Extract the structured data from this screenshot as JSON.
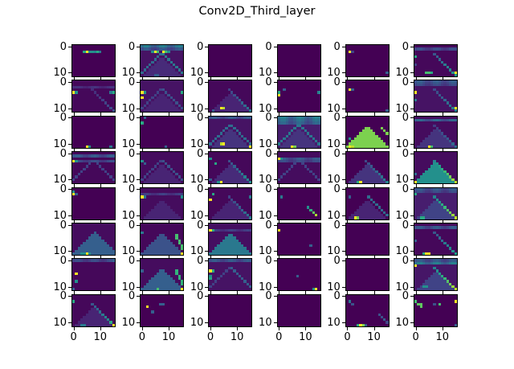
{
  "title": "Conv2D_Third_layer",
  "chart_data": {
    "type": "heatmap",
    "title": "Conv2D_Third_layer",
    "grid": {
      "rows": 8,
      "cols": 6
    },
    "image_shape": [
      12,
      16
    ],
    "colormap": "viridis",
    "yticks": [
      "0",
      "10"
    ],
    "xticks": [
      "0",
      "10"
    ],
    "xlabel": "",
    "ylabel": "",
    "panels": [
      {
        "bg": 0,
        "pts": [
          [
            2,
            4,
            0.6
          ],
          [
            2,
            5,
            1
          ],
          [
            2,
            6,
            0.5
          ],
          [
            2,
            7,
            0.5
          ],
          [
            2,
            8,
            0.45
          ],
          [
            2,
            9,
            0.6
          ],
          [
            2,
            10,
            0.4
          ]
        ]
      },
      {
        "bg": 0.05,
        "band": [
          [
            0,
            0.45
          ],
          [
            1,
            0.3
          ]
        ],
        "tri": 0.12,
        "diag": [
          0.35,
          0.4
        ],
        "pts": [
          [
            2,
            5,
            1
          ],
          [
            2,
            6,
            0.7
          ],
          [
            2,
            8,
            1
          ],
          [
            2,
            9,
            0.7
          ],
          [
            2,
            4,
            0.5
          ],
          [
            2,
            10,
            0.5
          ],
          [
            11,
            5,
            0.3
          ],
          [
            11,
            6,
            0.3
          ]
        ]
      },
      {
        "bg": 0
      },
      {
        "bg": 0
      },
      {
        "bg": 0,
        "pts": [
          [
            2,
            1,
            1
          ],
          [
            2,
            2,
            0.2
          ],
          [
            10,
            15,
            0.3
          ]
        ]
      },
      {
        "bg": 0.02,
        "band": [
          [
            1,
            0.25
          ]
        ],
        "diagR": 0.55,
        "pts": [
          [
            4,
            0,
            0.6
          ],
          [
            7,
            0,
            0.2
          ],
          [
            10,
            4,
            0.7
          ],
          [
            10,
            5,
            0.7
          ],
          [
            10,
            6,
            0.6
          ],
          [
            10,
            15,
            1
          ]
        ]
      },
      {
        "bg": 0.02,
        "diagR": 0.25,
        "band": [
          [
            2,
            0.15
          ]
        ],
        "pts": [
          [
            4,
            0,
            1
          ],
          [
            4,
            1,
            0.5
          ],
          [
            4,
            15,
            0.6
          ],
          [
            4,
            14,
            0.4
          ]
        ]
      },
      {
        "bg": 0.05,
        "tri": 0.1,
        "diag": [
          0.2,
          0.25
        ],
        "pts": [
          [
            4,
            0,
            1
          ],
          [
            4,
            1,
            0.5
          ],
          [
            6,
            0,
            1
          ],
          [
            4,
            15,
            0.6
          ]
        ]
      },
      {
        "bg": 0.02,
        "tri": 0.1,
        "diagR": 0.4,
        "pts": [
          [
            10,
            4,
            1
          ],
          [
            10,
            5,
            0.9
          ],
          [
            11,
            1,
            0.3
          ]
        ]
      },
      {
        "bg": 0,
        "pts": [
          [
            4,
            0,
            0.6
          ],
          [
            5,
            0,
            1
          ],
          [
            4,
            15,
            0.45
          ],
          [
            3,
            2,
            0.3
          ]
        ]
      },
      {
        "bg": 0,
        "pts": [
          [
            3,
            1,
            1
          ],
          [
            3,
            2,
            0.3
          ],
          [
            11,
            15,
            0.3
          ]
        ]
      },
      {
        "bg": 0.05,
        "band": [
          [
            0,
            0.3
          ],
          [
            1,
            0.25
          ]
        ],
        "diagR": 0.45,
        "pts": [
          [
            4,
            0,
            1
          ],
          [
            10,
            15,
            1
          ],
          [
            7,
            0,
            0.4
          ]
        ]
      },
      {
        "bg": 0,
        "pts": [
          [
            11,
            5,
            1
          ],
          [
            11,
            6,
            0.5
          ],
          [
            11,
            14,
            0.4
          ]
        ]
      },
      {
        "bg": 0,
        "pts": [
          [
            0,
            1,
            0.3
          ],
          [
            2,
            0,
            0.6
          ],
          [
            11,
            9,
            0.3
          ]
        ]
      },
      {
        "bg": 0.05,
        "band": [
          [
            0,
            0.3
          ]
        ],
        "tri": 0.15,
        "diag": [
          0.35,
          0.35
        ],
        "pts": [
          [
            10,
            4,
            0.9
          ],
          [
            10,
            5,
            1
          ],
          [
            11,
            15,
            1
          ]
        ]
      },
      {
        "bg": 0.08,
        "band": [
          [
            0,
            0.45
          ],
          [
            1,
            0.4
          ],
          [
            2,
            0.35
          ]
        ],
        "tri": 0.15,
        "diag": [
          0.4,
          0.4
        ],
        "pts": [
          [
            11,
            5,
            1
          ],
          [
            11,
            6,
            0.8
          ]
        ]
      },
      {
        "bg": 0,
        "triBig": 0.8,
        "pts": [
          [
            8,
            1,
            0.5
          ],
          [
            11,
            1,
            1
          ],
          [
            11,
            2,
            0.9
          ],
          [
            4,
            13,
            0.8
          ],
          [
            5,
            14,
            0.8
          ],
          [
            6,
            15,
            0.8
          ]
        ]
      },
      {
        "bg": 0.03,
        "band": [
          [
            1,
            0.35
          ]
        ],
        "tri": 0.15,
        "diagR": 0.35,
        "pts": [
          [
            11,
            5,
            1
          ],
          [
            11,
            6,
            0.7
          ]
        ]
      },
      {
        "bg": 0.02,
        "band": [
          [
            1,
            0.3
          ],
          [
            3,
            0.25
          ]
        ],
        "diag": [
          0.2,
          0.2
        ],
        "pts": [
          [
            3,
            0,
            1
          ],
          [
            3,
            1,
            0.5
          ]
        ]
      },
      {
        "bg": 0.03,
        "tri": 0.1,
        "diag": [
          0.2,
          0.25
        ],
        "pts": [
          [
            3,
            0,
            0.5
          ],
          [
            4,
            1,
            0.3
          ]
        ]
      },
      {
        "bg": 0.02,
        "tri": 0.12,
        "diagR": 0.5,
        "pts": [
          [
            2,
            0,
            0.5
          ],
          [
            4,
            2,
            0.6
          ],
          [
            10,
            0,
            0.3
          ],
          [
            11,
            3,
            0.5
          ],
          [
            11,
            4,
            1
          ]
        ]
      },
      {
        "bg": 0.03,
        "band": [
          [
            2,
            0.3
          ],
          [
            3,
            0.25
          ]
        ],
        "diag": [
          0.2,
          0.2
        ],
        "pts": [
          [
            2,
            0,
            1
          ],
          [
            2,
            1,
            0.5
          ]
        ]
      },
      {
        "bg": 0,
        "tri": 0.15,
        "diagR": 0.45,
        "pts": [
          [
            11,
            5,
            1
          ],
          [
            11,
            4,
            0.6
          ]
        ]
      },
      {
        "bg": 0.03,
        "triBig": 0.5,
        "diagR": 0.9,
        "pts": [
          [
            11,
            0,
            1
          ],
          [
            8,
            0,
            0.35
          ]
        ]
      },
      {
        "bg": 0,
        "pts": [
          [
            1,
            0,
            0.5
          ],
          [
            2,
            0,
            1
          ],
          [
            2,
            1,
            0.3
          ]
        ]
      },
      {
        "bg": 0.03,
        "band": [
          [
            2,
            0.2
          ]
        ],
        "tri": 0.1,
        "pts": [
          [
            3,
            0,
            1
          ],
          [
            3,
            1,
            0.4
          ],
          [
            3,
            15,
            0.5
          ]
        ]
      },
      {
        "bg": 0.02,
        "tri": 0.1,
        "diagR": 0.4,
        "pts": [
          [
            2,
            1,
            0.6
          ],
          [
            4,
            0,
            1
          ],
          [
            3,
            15,
            0.4
          ]
        ]
      },
      {
        "bg": 0,
        "diagRshort": 1,
        "pts": [
          [
            3,
            1,
            0.4
          ]
        ]
      },
      {
        "bg": 0,
        "tri": 0.1,
        "diag": [
          0.0,
          0.35
        ],
        "pts": [
          [
            3,
            1,
            0.3
          ],
          [
            11,
            3,
            1
          ],
          [
            11,
            4,
            0.8
          ]
        ]
      },
      {
        "bg": 0.08,
        "band": [
          [
            0,
            0.3
          ],
          [
            1,
            0.25
          ]
        ],
        "tri": 0.2,
        "diagR": 0.9,
        "pts": [
          [
            2,
            0,
            0.6
          ],
          [
            11,
            2,
            0.6
          ],
          [
            11,
            3,
            0.6
          ]
        ]
      },
      {
        "bg": 0.03,
        "triBig": 0.3,
        "diag": [
          0.0,
          0.3
        ],
        "pts": [
          [
            11,
            4,
            0.5
          ],
          [
            11,
            5,
            1
          ],
          [
            11,
            6,
            0.5
          ],
          [
            11,
            3,
            0.5
          ]
        ]
      },
      {
        "bg": 0.02,
        "triBig": 0.25,
        "diagRgreen": 0.7,
        "pts": [
          [
            3,
            0,
            0.4
          ],
          [
            11,
            15,
            1
          ]
        ]
      },
      {
        "bg": 0.04,
        "triBig": 0.4,
        "band": [
          [
            2,
            0.2
          ]
        ],
        "pts": [
          [
            2,
            0,
            1
          ],
          [
            2,
            1,
            0.6
          ],
          [
            11,
            1,
            0.3
          ]
        ]
      },
      {
        "bg": 0,
        "pts": [
          [
            2,
            0,
            1
          ],
          [
            8,
            12,
            0.3
          ]
        ]
      },
      {
        "bg": 0
      },
      {
        "bg": 0.02,
        "band": [
          [
            1,
            0.3
          ]
        ],
        "diagR": 0.55,
        "pts": [
          [
            11,
            4,
            1
          ],
          [
            11,
            5,
            1
          ],
          [
            11,
            3,
            0.6
          ],
          [
            6,
            0,
            0.3
          ]
        ]
      },
      {
        "bg": 0.02,
        "band": [
          [
            0,
            0.25
          ]
        ],
        "pts": [
          [
            5,
            1,
            1
          ],
          [
            8,
            1,
            0.5
          ],
          [
            11,
            0,
            0.3
          ],
          [
            0,
            15,
            0.3
          ]
        ]
      },
      {
        "bg": 0.03,
        "triBig": 0.3,
        "diagRgreen": 0.65,
        "pts": [
          [
            11,
            6,
            0.7
          ],
          [
            11,
            15,
            1
          ],
          [
            4,
            0,
            0.3
          ]
        ]
      },
      {
        "bg": 0.05,
        "band": [
          [
            0,
            0.3
          ]
        ],
        "diag": [
          0.2,
          0.3
        ],
        "pts": [
          [
            4,
            0,
            1
          ],
          [
            4,
            1,
            0.6
          ],
          [
            6,
            0,
            0.5
          ],
          [
            7,
            0,
            0.6
          ]
        ]
      },
      {
        "bg": 0,
        "pts": [
          [
            6,
            7,
            0.3
          ],
          [
            11,
            13,
            0.5
          ],
          [
            11,
            14,
            1
          ]
        ]
      },
      {
        "bg": 0
      },
      {
        "bg": 0.06,
        "band": [
          [
            1,
            0.45
          ],
          [
            0,
            0.3
          ]
        ],
        "tri": 0.2,
        "diagR": 0.9,
        "pts": [
          [
            2,
            0,
            1
          ],
          [
            10,
            3,
            0.5
          ],
          [
            10,
            4,
            0.5
          ]
        ]
      },
      {
        "bg": 0.02,
        "tri": 0.1,
        "diagR": 0.55,
        "pts": [
          [
            2,
            0,
            0.6
          ],
          [
            11,
            15,
            1
          ],
          [
            10,
            14,
            0.6
          ],
          [
            11,
            3,
            0.4
          ],
          [
            11,
            4,
            0.4
          ]
        ]
      },
      {
        "bg": 0,
        "pts": [
          [
            4,
            2,
            1
          ],
          [
            3,
            7,
            0.3
          ],
          [
            3,
            8,
            0.3
          ],
          [
            6,
            4,
            0.3
          ]
        ]
      },
      {
        "bg": 0
      },
      {
        "bg": 0
      },
      {
        "bg": 0,
        "pts": [
          [
            2,
            1,
            0.4
          ],
          [
            3,
            2,
            0.25
          ],
          [
            7,
            12,
            0.25
          ],
          [
            8,
            13,
            0.25
          ],
          [
            9,
            14,
            0.3
          ],
          [
            10,
            15,
            0.2
          ],
          [
            11,
            4,
            0.6
          ],
          [
            11,
            5,
            1
          ],
          [
            11,
            6,
            0.8
          ],
          [
            11,
            7,
            0.3
          ]
        ]
      },
      {
        "bg": 0,
        "pts": [
          [
            2,
            0,
            0.7
          ],
          [
            3,
            1,
            0.75
          ],
          [
            3,
            2,
            0.75
          ],
          [
            4,
            2,
            0.75
          ],
          [
            3,
            7,
            0.25
          ],
          [
            3,
            9,
            0.7
          ],
          [
            2,
            15,
            1
          ],
          [
            11,
            15,
            0.3
          ]
        ]
      }
    ]
  }
}
